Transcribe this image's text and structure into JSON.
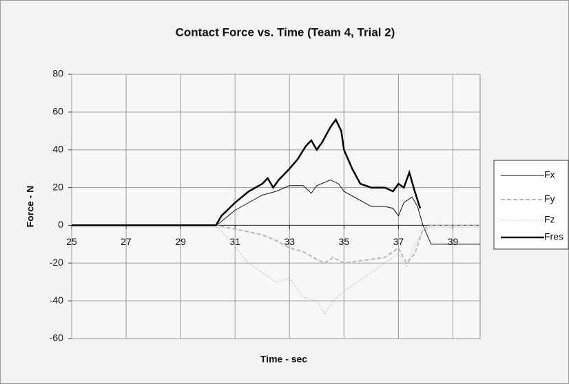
{
  "chart_data": {
    "type": "line",
    "title": "Contact Force vs. Time (Team 4, Trial 2)",
    "x_label": "Time - sec",
    "y_label": "Force - N",
    "xlim": [
      25,
      40
    ],
    "xticks": [
      25,
      27,
      29,
      31,
      33,
      35,
      37,
      39
    ],
    "ylim": [
      -60,
      80
    ],
    "yticks": [
      -60,
      -40,
      -20,
      0,
      20,
      40,
      60,
      80
    ],
    "grid": true,
    "legend": "right",
    "series": [
      {
        "name": "Fx",
        "color": "#111111",
        "width": 1,
        "dash": "none",
        "x": [
          25,
          30.3,
          30.5,
          31,
          31.5,
          32,
          32.5,
          33,
          33.5,
          33.8,
          34,
          34.5,
          34.8,
          35,
          35.5,
          36,
          36.5,
          36.8,
          37,
          37.2,
          37.5,
          37.7,
          37.9,
          38.2,
          40
        ],
        "values": [
          0,
          0,
          2,
          8,
          12,
          16,
          18,
          21,
          21,
          17,
          21,
          24,
          22,
          18,
          14,
          10,
          10,
          9,
          5,
          12,
          15,
          10,
          0,
          -10,
          -10
        ]
      },
      {
        "name": "Fy",
        "color": "#b8b8b8",
        "width": 2,
        "dash": "6 3",
        "x": [
          25,
          30.3,
          31,
          32,
          32.5,
          33,
          33.5,
          34,
          34.3,
          34.6,
          35,
          35.5,
          36,
          36.5,
          37,
          37.3,
          37.6,
          37.9,
          38.2,
          40
        ],
        "values": [
          0,
          0,
          -2,
          -5,
          -8,
          -12,
          -14,
          -18,
          -20,
          -17,
          -20,
          -19,
          -18,
          -17,
          -12,
          -20,
          -15,
          -2,
          0,
          0
        ]
      },
      {
        "name": "Fz",
        "color": "#a0a0a0",
        "width": 1,
        "dash": "1 2",
        "x": [
          25,
          30.3,
          30.8,
          31.5,
          32,
          32.5,
          33,
          33.5,
          34,
          34.3,
          34.6,
          35,
          35.5,
          36,
          36.5,
          37,
          37.3,
          37.6,
          37.9,
          38.2,
          40
        ],
        "values": [
          0,
          0,
          -8,
          -20,
          -25,
          -30,
          -28,
          -38,
          -40,
          -47,
          -40,
          -35,
          -30,
          -25,
          -20,
          -15,
          -22,
          -10,
          -3,
          -1,
          -1
        ]
      },
      {
        "name": "Fres",
        "color": "#000000",
        "width": 2.5,
        "dash": "none",
        "x": [
          25,
          30.3,
          30.5,
          31,
          31.5,
          32,
          32.2,
          32.4,
          32.6,
          33,
          33.3,
          33.6,
          33.8,
          34,
          34.2,
          34.5,
          34.7,
          34.9,
          35,
          35.3,
          35.6,
          36,
          36.5,
          36.8,
          37,
          37.2,
          37.4,
          37.6,
          37.8
        ],
        "values": [
          0,
          0,
          5,
          12,
          18,
          22,
          25,
          20,
          24,
          30,
          35,
          42,
          45,
          40,
          44,
          52,
          56,
          50,
          40,
          30,
          22,
          20,
          20,
          18,
          22,
          20,
          28,
          18,
          9
        ]
      }
    ]
  }
}
